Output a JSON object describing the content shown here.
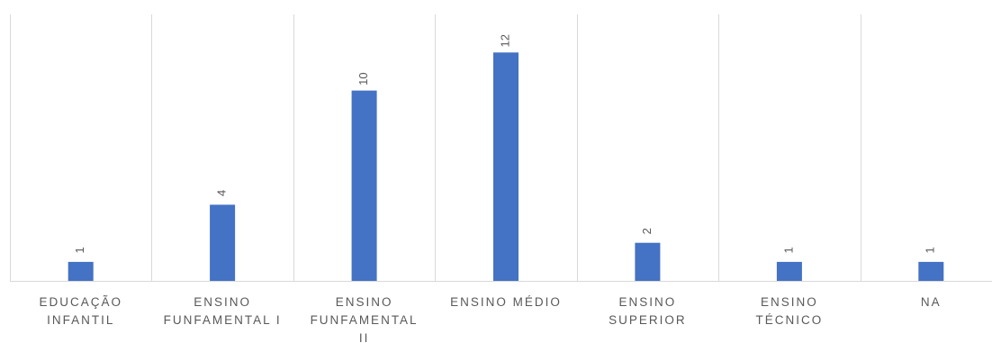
{
  "chart_data": {
    "type": "bar",
    "categories": [
      [
        "EDUCAÇÃO",
        "INFANTIL"
      ],
      [
        "ENSINO",
        "FUNFAMENTAL I"
      ],
      [
        "ENSINO",
        "FUNFAMENTAL",
        "II"
      ],
      [
        "ENSINO MÉDIO"
      ],
      [
        "ENSINO",
        "SUPERIOR"
      ],
      [
        "ENSINO",
        "TÉCNICO"
      ],
      [
        "NA"
      ]
    ],
    "values": [
      1,
      4,
      10,
      12,
      2,
      1,
      1
    ],
    "data_labels": [
      "1",
      "4",
      "10",
      "12",
      "2",
      "1",
      "1"
    ],
    "ylim": [
      0,
      14
    ],
    "grid": "vertical category separators",
    "data_label_orientation": "rotated",
    "colors": {
      "bar": "#4472C4",
      "grid": "#D9D9D9",
      "text": "#595959"
    }
  }
}
